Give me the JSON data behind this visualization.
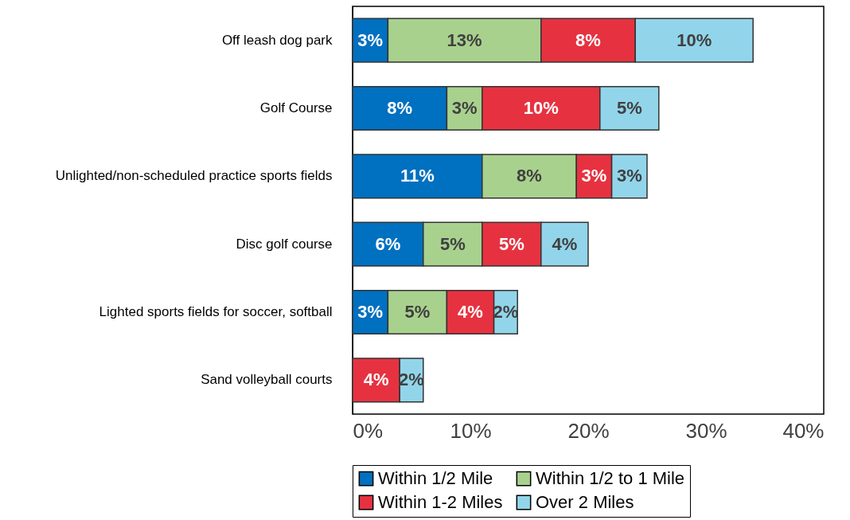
{
  "chart_data": {
    "type": "bar",
    "orientation": "horizontal",
    "stacked": true,
    "categories": [
      "Off leash dog park",
      "Golf Course",
      "Unlighted/non-scheduled practice sports fields",
      "Disc golf course",
      "Lighted sports fields for soccer, softball",
      "Sand volleyball courts"
    ],
    "series": [
      {
        "name": "Within 1/2 Mile",
        "color": "#0070c0",
        "values": [
          3,
          8,
          11,
          6,
          3,
          null
        ],
        "value_labels": [
          "3%",
          "8%",
          "11%",
          "6%",
          "3%",
          null
        ]
      },
      {
        "name": "Within 1/2 to 1 Mile",
        "color": "#a9d18e",
        "values": [
          13,
          3,
          8,
          5,
          5,
          null
        ],
        "value_labels": [
          "13%",
          "3%",
          "8%",
          "5%",
          "5%",
          null
        ]
      },
      {
        "name": "Within 1-2 Miles",
        "color": "#e63240",
        "values": [
          8,
          10,
          3,
          5,
          4,
          4
        ],
        "value_labels": [
          "8%",
          "10%",
          "3%",
          "5%",
          "4%",
          "4%"
        ]
      },
      {
        "name": "Over 2 Miles",
        "color": "#92d5ea",
        "values": [
          10,
          5,
          3,
          4,
          2,
          2
        ],
        "value_labels": [
          "10%",
          "5%",
          "3%",
          "4%",
          "2%",
          "2%"
        ]
      }
    ],
    "xlim": [
      0,
      40
    ],
    "xticks": [
      {
        "value": 0,
        "label": "0%"
      },
      {
        "value": 10,
        "label": "10%"
      },
      {
        "value": 20,
        "label": "20%"
      },
      {
        "value": 30,
        "label": "30%"
      },
      {
        "value": 40,
        "label": "40%"
      }
    ],
    "grid": false,
    "legend": "bottom"
  }
}
